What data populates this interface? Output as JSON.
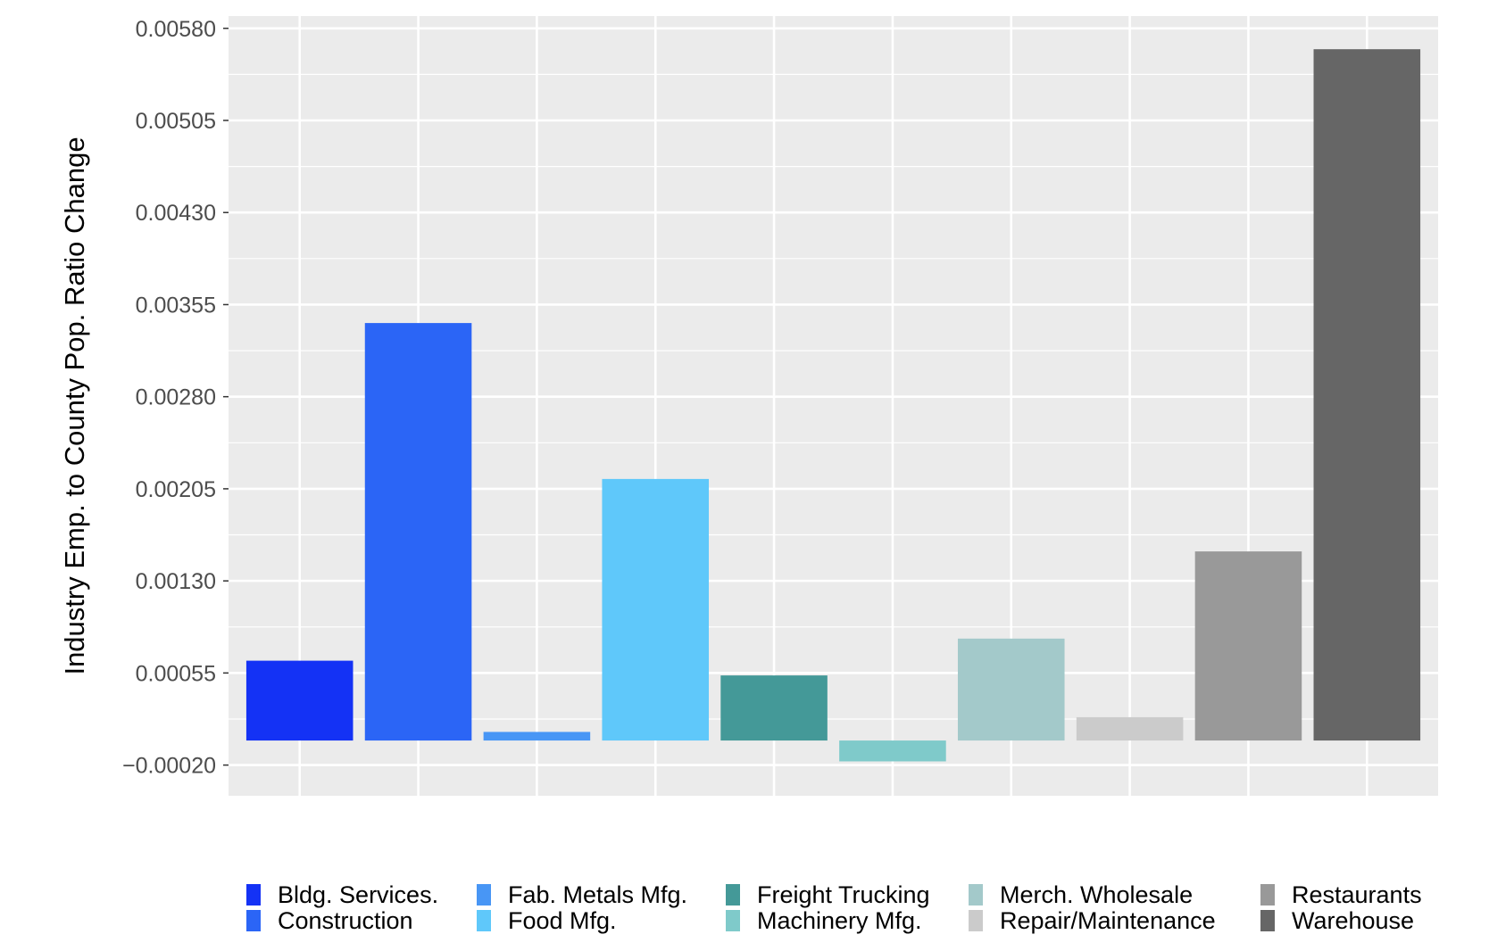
{
  "chart_data": {
    "type": "bar",
    "title": "",
    "xlabel": "",
    "ylabel": "Industry Emp. to County Pop. Ratio Change",
    "ylim": [
      -0.00045,
      0.0059
    ],
    "yticks": [
      -0.0002,
      0.00055,
      0.0013,
      0.00205,
      0.0028,
      0.00355,
      0.0043,
      0.00505,
      0.0058
    ],
    "ytick_labels": [
      "−0.00020",
      "0.00055",
      "0.00130",
      "0.00205",
      "0.00280",
      "0.00355",
      "0.00430",
      "0.00505",
      "0.00580"
    ],
    "grid": true,
    "legend_position": "bottom",
    "categories": [
      "Bldg. Services.",
      "Construction",
      "Fab. Metals Mfg.",
      "Food Mfg.",
      "Freight Trucking",
      "Machinery Mfg.",
      "Merch. Wholesale",
      "Repair/Maintenance",
      "Restaurants",
      "Warehouse"
    ],
    "values": [
      0.00065,
      0.0034,
      7e-05,
      0.00213,
      0.00053,
      -0.00017,
      0.00083,
      0.00019,
      0.00154,
      0.00563
    ],
    "colors": [
      "#1432F5",
      "#2B65F6",
      "#4896F5",
      "#5FC8FA",
      "#449998",
      "#7FCACA",
      "#A3C9CA",
      "#CBCBCB",
      "#999999",
      "#666666"
    ]
  }
}
